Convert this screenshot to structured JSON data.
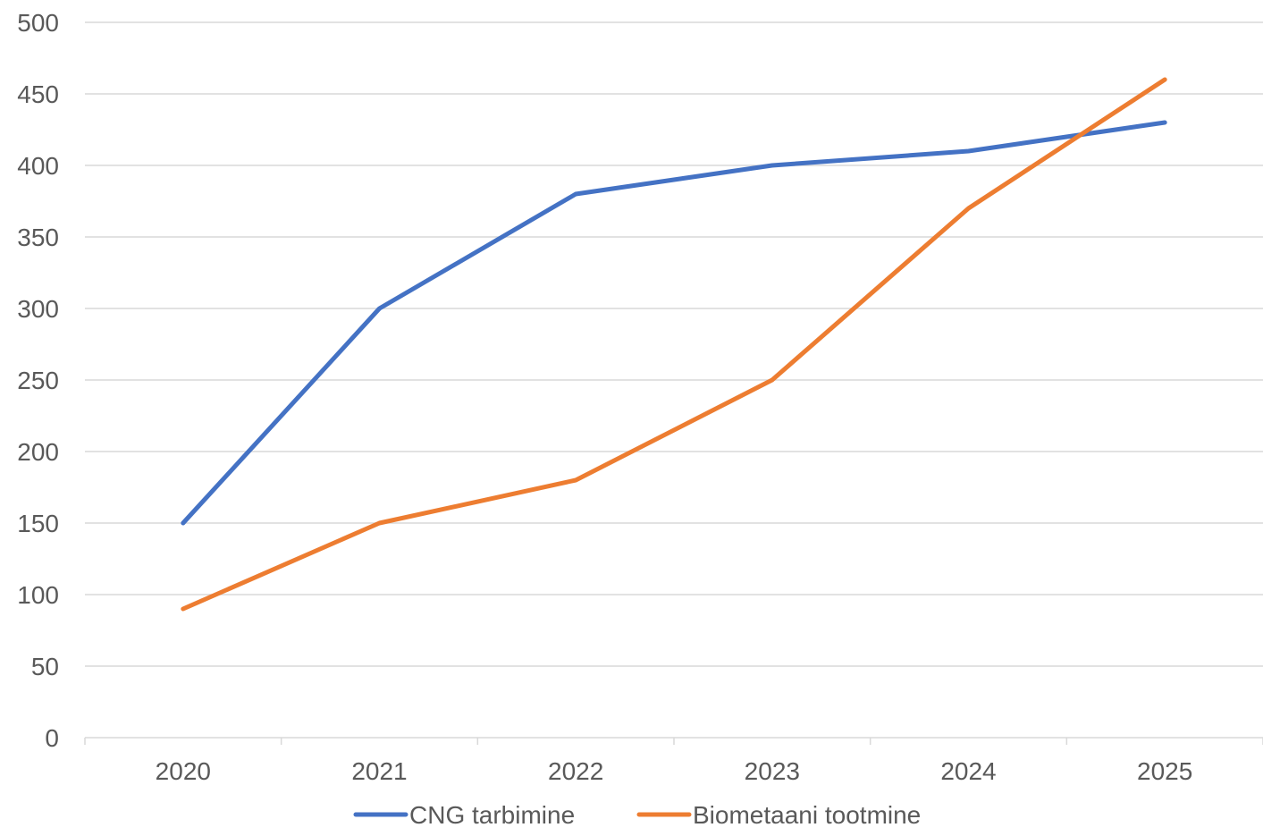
{
  "chart_data": {
    "type": "line",
    "title": "",
    "xlabel": "",
    "ylabel": "",
    "categories": [
      "2020",
      "2021",
      "2022",
      "2023",
      "2024",
      "2025"
    ],
    "ylim": [
      0,
      500
    ],
    "y_ticks": [
      "0",
      "50",
      "100",
      "150",
      "200",
      "250",
      "300",
      "350",
      "400",
      "450",
      "500"
    ],
    "grid": true,
    "legend_position": "bottom",
    "series": [
      {
        "name": "CNG tarbimine",
        "color": "#4472c4",
        "values": [
          150,
          300,
          380,
          400,
          410,
          430
        ]
      },
      {
        "name": "Biometaani tootmine",
        "color": "#ed7d31",
        "values": [
          90,
          150,
          180,
          250,
          370,
          460
        ]
      }
    ]
  }
}
